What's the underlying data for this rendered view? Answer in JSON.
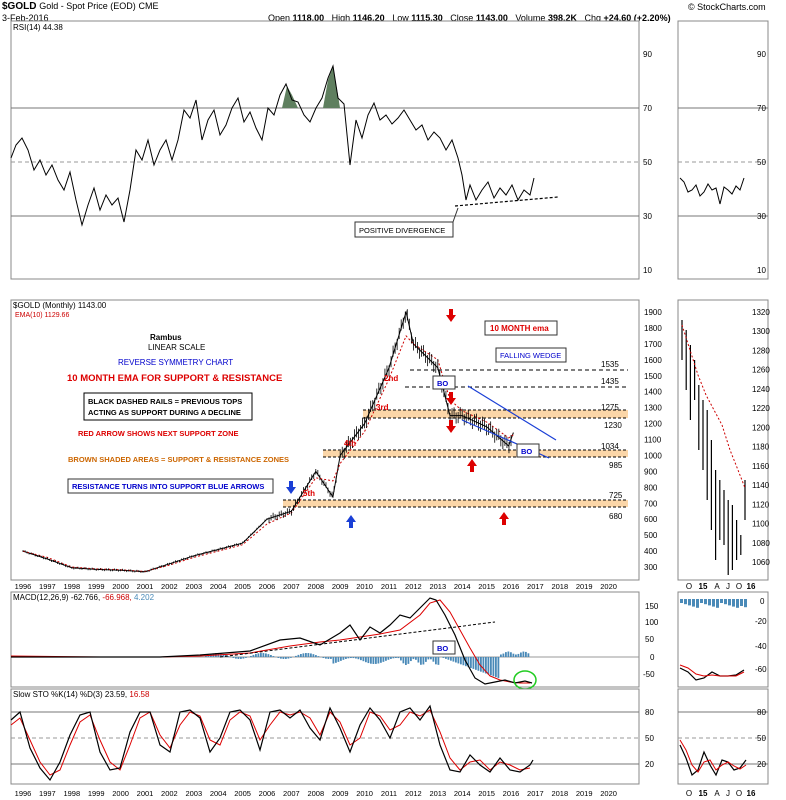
{
  "header": {
    "symbol": "$GOLD",
    "name": "Gold - Spot Price (EOD)",
    "exchange": "CME",
    "date": "3-Feb-2016",
    "watermark": "© StockCharts.com",
    "open_label": "Open",
    "open": "1118.00",
    "high_label": "High",
    "high": "1146.20",
    "low_label": "Low",
    "low": "1115.30",
    "close_label": "Close",
    "close": "1143.00",
    "volume_label": "Volume",
    "volume": "398.2K",
    "chg_label": "Chg",
    "chg": "+24.60 (+2.20%)"
  },
  "rsi_panel": {
    "legend": "RSI(14) 44.38",
    "ticks": [
      "90",
      "70",
      "50",
      "30",
      "10"
    ],
    "annotation": "POSITIVE DIVERGENCE"
  },
  "price_panel": {
    "legend_symbol": "$GOLD (Monthly) 1143.00",
    "legend_ema": "EMA(10) 1129.66",
    "ticks": [
      "1900",
      "1800",
      "1700",
      "1600",
      "1500",
      "1400",
      "1300",
      "1200",
      "1100",
      "1000",
      "900",
      "800",
      "700",
      "600",
      "500",
      "400",
      "300"
    ],
    "right_ticks": [
      "1320",
      "1300",
      "1280",
      "1260",
      "1240",
      "1220",
      "1200",
      "1180",
      "1160",
      "1140",
      "1120",
      "1100",
      "1080",
      "1060"
    ],
    "notes": {
      "rambus": "Rambus",
      "linear": "LINEAR SCALE",
      "reverse": "REVERSE SYMMETRY CHART",
      "ema_sr": "10 MONTH EMA FOR SUPPORT & RESISTANCE",
      "dashed_1": "BLACK DASHED RAILS = PREVIOUS TOPS",
      "dashed_2": "ACTING AS SUPPORT DURING A DECLINE",
      "red_arrow": "RED ARROW SHOWS NEXT SUPPORT ZONE",
      "brown": "BROWN SHADED AREAS = SUPPORT & RESISTANCE ZONES",
      "blue_arrows": "RESISTANCE TURNS INTO SUPPORT BLUE ARROWS",
      "ema_box": "10 MONTH ema",
      "wedge": "FALLING WEDGE",
      "bo1": "BO",
      "bo2": "BO",
      "t5": "5th",
      "t4": "4th",
      "t3": "3rd",
      "t2": "2nd"
    },
    "levels": [
      "1535",
      "1435",
      "1275",
      "1230",
      "1034",
      "985",
      "725",
      "680"
    ]
  },
  "x_axis": {
    "years": [
      "1996",
      "1997",
      "1998",
      "1999",
      "2000",
      "2001",
      "2002",
      "2003",
      "2004",
      "2005",
      "2006",
      "2007",
      "2008",
      "2009",
      "2010",
      "2011",
      "2012",
      "2013",
      "2014",
      "2015",
      "2016",
      "2017",
      "2018",
      "2019",
      "2020"
    ],
    "right_labels": [
      "O",
      "15",
      "A",
      "J",
      "O",
      "16"
    ]
  },
  "macd_panel": {
    "legend_name": "MACD(12,26,9)",
    "legend_macd": "-62.766,",
    "legend_signal": "-66.968,",
    "legend_hist": "4.202",
    "ticks": [
      "150",
      "100",
      "50",
      "0",
      "-50"
    ],
    "right_ticks": [
      "0",
      "-20",
      "-40",
      "-60"
    ],
    "bo": "BO"
  },
  "sto_panel": {
    "legend_name": "Slow STO %K(14) %D(3)",
    "legend_k": "23.59,",
    "legend_d": "16.58",
    "ticks": [
      "80",
      "50",
      "20"
    ],
    "right_ticks": [
      "80",
      "50",
      "20"
    ]
  },
  "colors": {
    "ema": "#cc0000",
    "macd_hist": "#4a8ab8",
    "annotation_blue": "#0000cc",
    "annotation_red": "#dd0000",
    "annotation_orange": "#cc6600",
    "zone_fill": "#fbd6a8",
    "rsi_fill": "#5f7f5f",
    "green_circle": "#22cc22"
  },
  "chart_data": {
    "type": "line",
    "title": "$GOLD Gold - Spot Price (EOD) CME",
    "x": [
      1996,
      1997,
      1998,
      1999,
      2000,
      2001,
      2002,
      2003,
      2004,
      2005,
      2006,
      2007,
      2008,
      2008.7,
      2009,
      2010,
      2011,
      2011.7,
      2012,
      2013,
      2013.5,
      2014,
      2015,
      2015.9,
      2016.1
    ],
    "series": [
      {
        "name": "$GOLD (Monthly)",
        "values": [
          400,
          350,
          295,
          285,
          280,
          270,
          320,
          370,
          410,
          450,
          600,
          650,
          900,
          740,
          1000,
          1200,
          1550,
          1900,
          1700,
          1550,
          1250,
          1250,
          1180,
          1060,
          1143
        ]
      },
      {
        "name": "EMA(10)",
        "values": [
          400,
          360,
          300,
          288,
          283,
          272,
          312,
          360,
          400,
          440,
          570,
          640,
          860,
          840,
          950,
          1150,
          1480,
          1750,
          1700,
          1600,
          1350,
          1280,
          1210,
          1110,
          1129.66
        ]
      }
    ],
    "ylim": [
      200,
      1950
    ],
    "levels": {
      "1535": 1535,
      "1435": 1435,
      "1275": 1275,
      "1230": 1230,
      "1034": 1034,
      "985": 985,
      "725": 725,
      "680": 680
    }
  }
}
